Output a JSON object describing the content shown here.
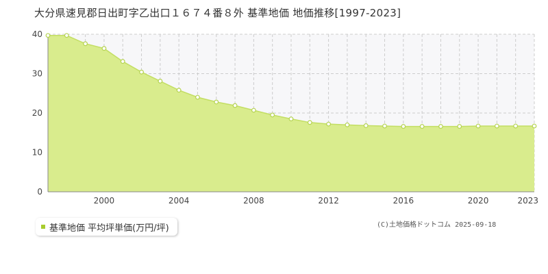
{
  "title": "大分県速見郡日出町字乙出口１６７４番８外 基準地価 地価推移[1997-2023]",
  "legend": {
    "label": "基準地価 平均坪単価(万円/坪)"
  },
  "copyright": "(C)土地価格ドットコム 2025-09-18",
  "colors": {
    "fill": "#d9ec8d",
    "line": "#c3de63",
    "marker_fill": "#ffffff",
    "marker_stroke": "#b5d350",
    "grid": "#cccccc",
    "plot_bg_upper": "#f7f7f9",
    "legend_square": "#a8cc2e"
  },
  "chart_data": {
    "type": "area",
    "title": "大分県速見郡日出町字乙出口１６７４番８外 基準地価 地価推移[1997-2023]",
    "xlabel": "",
    "ylabel": "",
    "xlim": [
      1997,
      2023
    ],
    "ylim": [
      0,
      40
    ],
    "x_ticks": [
      2000,
      2004,
      2008,
      2012,
      2016,
      2020,
      2023
    ],
    "y_ticks": [
      0,
      10,
      20,
      30,
      40
    ],
    "grid": true,
    "legend_position": "bottom-left",
    "series": [
      {
        "name": "基準地価 平均坪単価(万円/坪)",
        "x": [
          1997,
          1998,
          1999,
          2000,
          2001,
          2002,
          2003,
          2004,
          2005,
          2006,
          2007,
          2008,
          2009,
          2010,
          2011,
          2012,
          2013,
          2014,
          2015,
          2016,
          2017,
          2018,
          2019,
          2020,
          2021,
          2022,
          2023
        ],
        "values": [
          39.7,
          39.7,
          37.6,
          36.4,
          33.1,
          30.4,
          28.1,
          25.8,
          24.0,
          22.8,
          21.9,
          20.7,
          19.5,
          18.5,
          17.6,
          17.2,
          17.0,
          16.8,
          16.7,
          16.6,
          16.6,
          16.6,
          16.6,
          16.7,
          16.7,
          16.7,
          16.7
        ]
      }
    ]
  }
}
